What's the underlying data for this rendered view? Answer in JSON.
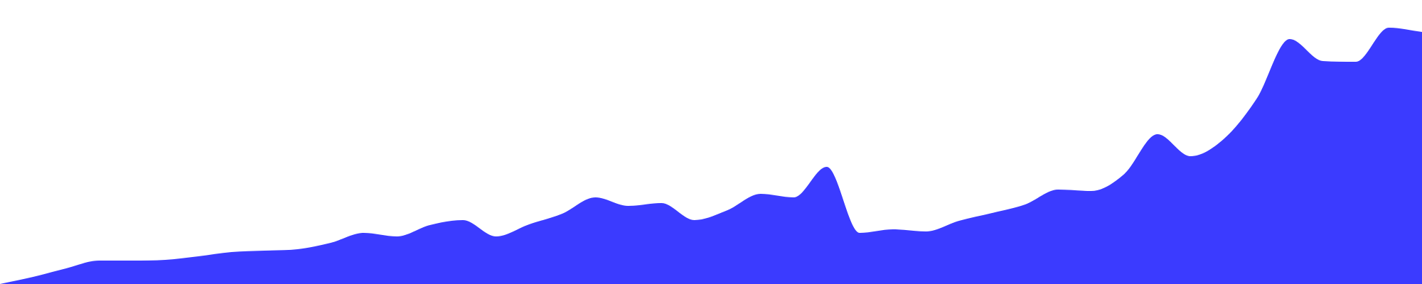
{
  "chart_data": {
    "type": "area",
    "x": [
      0,
      1,
      2,
      3,
      4,
      5,
      6,
      7,
      8,
      9,
      10,
      11,
      12,
      13,
      14,
      15,
      16,
      17,
      18,
      19,
      20,
      21,
      22,
      23,
      24,
      25,
      26,
      27,
      28,
      29,
      30,
      31,
      32,
      33,
      34,
      35,
      36,
      37,
      38,
      39,
      40,
      41,
      42,
      43
    ],
    "series": [
      {
        "values": [
          0,
          10,
          22,
          33,
          33,
          34,
          39,
          45,
          47,
          49,
          58,
          72,
          67,
          83,
          90,
          67,
          84,
          99,
          122,
          110,
          114,
          90,
          104,
          127,
          122,
          165,
          72,
          77,
          74,
          89,
          100,
          112,
          133,
          131,
          155,
          211,
          180,
          204,
          261,
          345,
          314,
          313,
          361,
          355
        ],
        "color": "#3b3bff"
      }
    ],
    "ylim": [
      0,
      400
    ],
    "grid": false,
    "legend": false
  }
}
